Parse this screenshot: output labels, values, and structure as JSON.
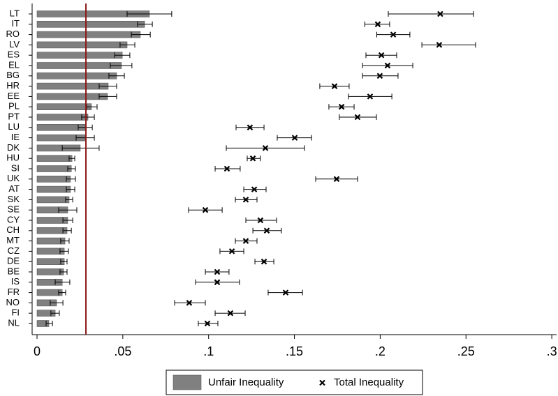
{
  "chart_data": {
    "type": "bar",
    "orientation": "horizontal",
    "categories": [
      "LT",
      "IT",
      "RO",
      "LV",
      "ES",
      "EL",
      "BG",
      "HR",
      "EE",
      "PL",
      "PT",
      "LU",
      "IE",
      "DK",
      "HU",
      "SI",
      "UK",
      "AT",
      "SK",
      "SE",
      "CY",
      "CH",
      "MT",
      "CZ",
      "DE",
      "BE",
      "IS",
      "FR",
      "NO",
      "FI",
      "NL"
    ],
    "series": [
      {
        "name": "Unfair Inequality",
        "type": "bar",
        "color": "#808080",
        "values": [
          0.0655,
          0.0627,
          0.0602,
          0.0525,
          0.0497,
          0.0492,
          0.0464,
          0.0415,
          0.0411,
          0.0317,
          0.0297,
          0.0281,
          0.0281,
          0.0252,
          0.0204,
          0.02,
          0.0195,
          0.0195,
          0.0187,
          0.0179,
          0.0179,
          0.0175,
          0.0163,
          0.0159,
          0.0159,
          0.0155,
          0.0147,
          0.0147,
          0.0114,
          0.0106,
          0.0069
        ],
        "low": [
          0.0525,
          0.0586,
          0.055,
          0.0484,
          0.0452,
          0.0427,
          0.0419,
          0.0362,
          0.0362,
          0.0289,
          0.026,
          0.024,
          0.0228,
          0.0147,
          0.0187,
          0.0179,
          0.0171,
          0.0171,
          0.0167,
          0.0126,
          0.0151,
          0.0151,
          0.0138,
          0.0134,
          0.0138,
          0.0134,
          0.0106,
          0.0126,
          0.0077,
          0.0081,
          0.0053
        ],
        "high": [
          0.0785,
          0.0672,
          0.066,
          0.057,
          0.0541,
          0.0553,
          0.0509,
          0.0464,
          0.0464,
          0.035,
          0.0334,
          0.0322,
          0.0334,
          0.0362,
          0.022,
          0.0224,
          0.0224,
          0.022,
          0.0208,
          0.0232,
          0.0208,
          0.02,
          0.0187,
          0.0183,
          0.0175,
          0.0175,
          0.0191,
          0.0167,
          0.0151,
          0.013,
          0.009
        ]
      },
      {
        "name": "Total Inequality",
        "type": "scatter",
        "marker": "x",
        "color": "#000000",
        "values": [
          0.235,
          0.1986,
          0.2076,
          0.2344,
          0.2007,
          0.2043,
          0.1998,
          0.1734,
          0.1941,
          0.1775,
          0.1868,
          0.1241,
          0.1502,
          0.1331,
          0.1258,
          0.1107,
          0.1746,
          0.1266,
          0.1217,
          0.0981,
          0.1302,
          0.1339,
          0.1217,
          0.1136,
          0.1323,
          0.105,
          0.105,
          0.1449,
          0.0887,
          0.1127,
          0.0993
        ],
        "low": [
          0.2047,
          0.191,
          0.198,
          0.2243,
          0.1917,
          0.1897,
          0.1897,
          0.1648,
          0.1815,
          0.1701,
          0.1762,
          0.116,
          0.14,
          0.1103,
          0.1225,
          0.1038,
          0.1624,
          0.1205,
          0.1156,
          0.0883,
          0.1217,
          0.1258,
          0.1156,
          0.1066,
          0.127,
          0.0981,
          0.0924,
          0.1347,
          0.0802,
          0.1038,
          0.094
        ],
        "high": [
          0.2544,
          0.2055,
          0.2173,
          0.2556,
          0.2096,
          0.219,
          0.2104,
          0.1819,
          0.2068,
          0.1848,
          0.1978,
          0.1323,
          0.16,
          0.1559,
          0.1302,
          0.1184,
          0.1868,
          0.1335,
          0.1282,
          0.1079,
          0.1396,
          0.1424,
          0.1282,
          0.1205,
          0.138,
          0.1119,
          0.118,
          0.1547,
          0.0981,
          0.1213,
          0.1054
        ]
      }
    ],
    "reference_line": {
      "value": 0.0285,
      "color": "#8b1a1a"
    },
    "xlim": [
      -0.00285,
      0.30281
    ],
    "xticks": [
      0,
      {
        "value": 0.05,
        "label": ".05"
      },
      {
        "value": 0.1,
        "label": ".1"
      },
      {
        "value": 0.15,
        "label": ".15"
      },
      {
        "value": 0.2,
        "label": ".2"
      },
      {
        "value": 0.25,
        "label": ".25"
      },
      {
        "value": 0.3,
        "label": ".3"
      }
    ],
    "legend": "bottom"
  }
}
